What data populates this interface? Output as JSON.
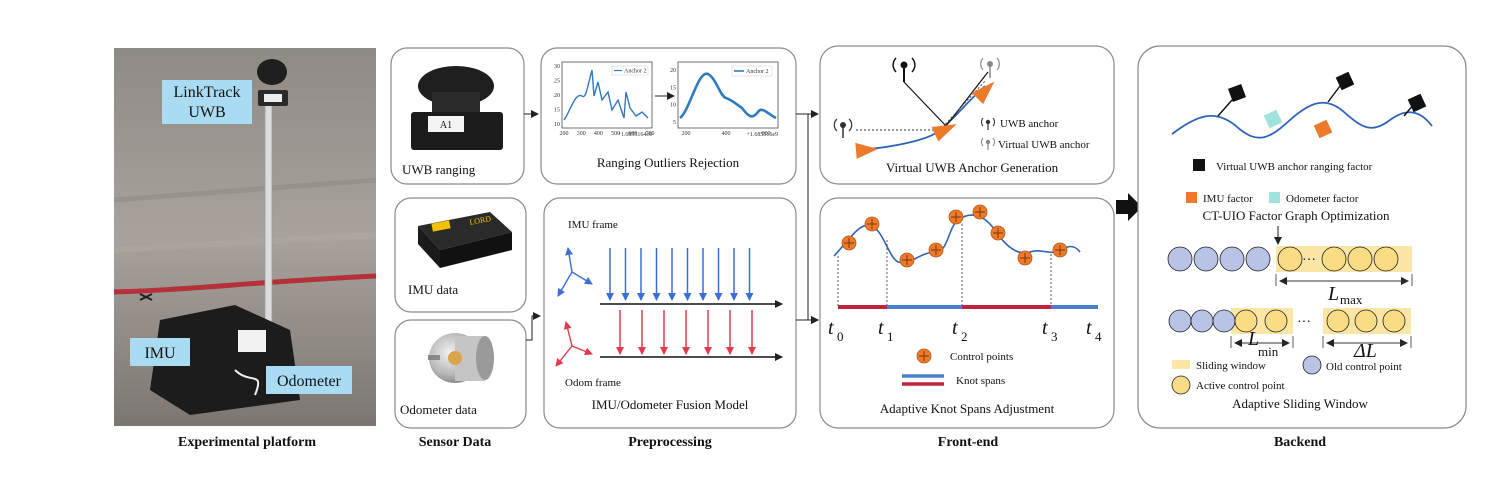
{
  "sections": {
    "platform": "Experimental platform",
    "sensor": "Sensor Data",
    "preprocessing": "Preprocessing",
    "frontend": "Front-end",
    "backend": "Backend"
  },
  "platform": {
    "uwb_line1": "LinkTrack",
    "uwb_line2": "UWB",
    "imu": "IMU",
    "odometer": "Odometer"
  },
  "sensor": {
    "uwb_ranging": "UWB ranging",
    "uwb_tag_text": "A1",
    "imu_data": "IMU data",
    "lord_brand": "LORD",
    "odometer_data": "Odometer data"
  },
  "preprocessing": {
    "ranging_title": "Ranging Outliers Rejection",
    "legend": "Anchor 2",
    "fusion_title": "IMU/Odometer Fusion Model",
    "imu_frame": "IMU frame",
    "odom_frame": "Odom frame",
    "plot1_yticks": [
      "30",
      "25",
      "20",
      "15",
      "10"
    ],
    "plot1_xticks": [
      "200",
      "300",
      "400",
      "500",
      "600",
      "700"
    ],
    "plot1_offset": "+1.6855164e9",
    "plot2_yticks": [
      "20",
      "15",
      "10",
      "5"
    ],
    "plot2_xticks": [
      "200",
      "400",
      "600"
    ],
    "plot2_offset": "+1.685516e9"
  },
  "frontend": {
    "virtual_title": "Virtual UWB Anchor Generation",
    "uwb_anchor": "UWB anchor",
    "virtual_uwb_anchor": "Virtual UWB anchor",
    "knot_title": "Adaptive Knot Spans Adjustment",
    "control_points": "Control points",
    "knot_spans": "Knot spans",
    "t_symbol": "t",
    "t_subscripts": [
      "0",
      "1",
      "2",
      "3",
      "4"
    ]
  },
  "backend": {
    "virtual_factor": "Virtual UWB anchor ranging factor",
    "imu_factor": "IMU factor",
    "odometer_factor": "Odometer factor",
    "factor_title": "CT-UIO Factor Graph Optimization",
    "ellipsis": "···",
    "lmax_symbol": "L",
    "lmax_sub": "max",
    "lmin_symbol": "L",
    "lmin_sub": "min",
    "delta_l": "ΔL",
    "sliding_window": "Sliding window",
    "active_cp": "Active control point",
    "old_cp": "Old control point",
    "window_title": "Adaptive Sliding Window"
  },
  "colors": {
    "blue_curve": "#2f63b8",
    "orange": "#ec7a2a",
    "red_arrow": "#e23a4a",
    "blue_arrow": "#3a6fd4",
    "knot_red": "#c0243b",
    "knot_blue": "#4a7fd0",
    "old_cp": "#b9c3e6",
    "active_cp": "#f9dc84",
    "window": "#fbe6a6",
    "odom_factor": "#9fe3dc",
    "label_bg": "#a9dcf2"
  }
}
